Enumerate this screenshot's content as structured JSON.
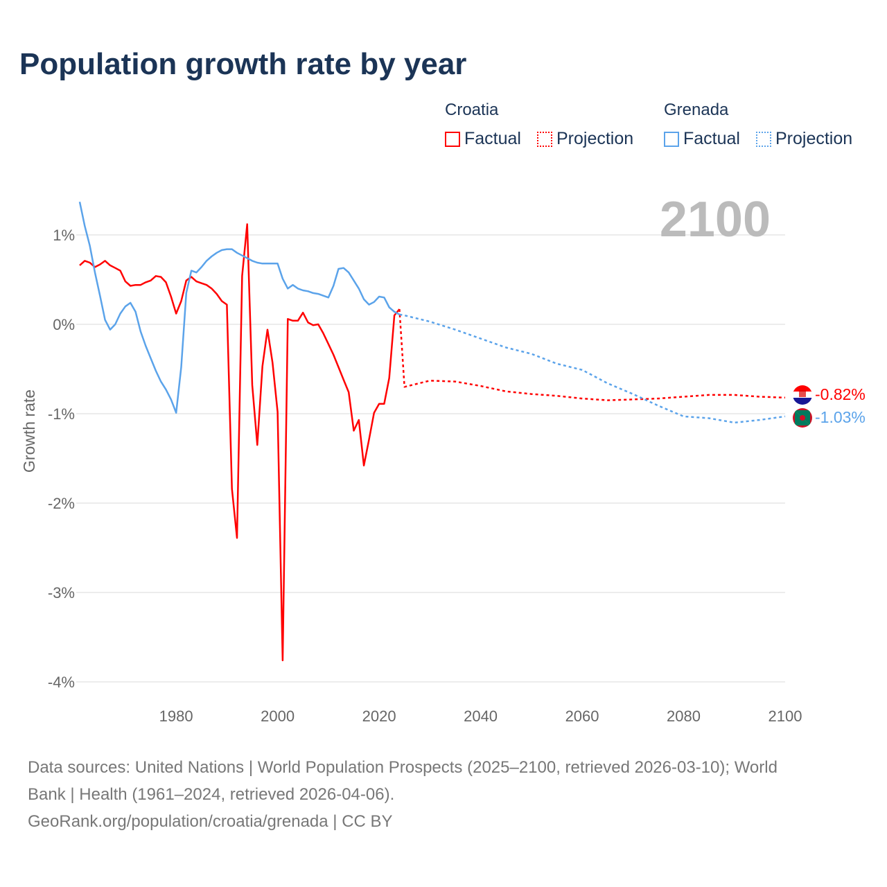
{
  "title": "Population growth rate by year",
  "legend": {
    "groups": [
      {
        "name": "Croatia",
        "color": "#ff0000",
        "factual": "Factual",
        "projection": "Projection"
      },
      {
        "name": "Grenada",
        "color": "#5ba3ea",
        "factual": "Factual",
        "projection": "Projection"
      }
    ]
  },
  "year_label": "2100",
  "end_labels": {
    "croatia": "-0.82%",
    "grenada": "-1.03%"
  },
  "footer": {
    "line1": "Data sources: United Nations | World Population Prospects (2025–2100, retrieved 2026-03-10); World",
    "line2": "Bank | Health (1961–2024, retrieved 2026-04-06).",
    "line3": "GeoRank.org/population/croatia/grenada | CC BY"
  },
  "chart_data": {
    "type": "line",
    "title": "Population growth rate by year",
    "xlabel": "",
    "ylabel": "Growth rate",
    "xlim": [
      1961,
      2100
    ],
    "ylim": [
      -4,
      1.3
    ],
    "xticks": [
      1980,
      2000,
      2020,
      2040,
      2060,
      2080,
      2100
    ],
    "xtick_labels": [
      "1980",
      "2000",
      "2020",
      "2040",
      "2060",
      "2080",
      "2100"
    ],
    "yticks": [
      1,
      0,
      -1,
      -2,
      -3,
      -4
    ],
    "ytick_labels": [
      "1%",
      "0%",
      "-1%",
      "-2%",
      "-3%",
      "-4%"
    ],
    "grid": true,
    "legend_position": "top-right",
    "series": [
      {
        "name": "Croatia Factual",
        "color": "#ff0000",
        "dash": false,
        "x_start": 1961,
        "values": [
          0.66,
          0.71,
          0.69,
          0.64,
          0.67,
          0.71,
          0.66,
          0.63,
          0.6,
          0.48,
          0.43,
          0.44,
          0.44,
          0.47,
          0.49,
          0.54,
          0.53,
          0.47,
          0.31,
          0.12,
          0.26,
          0.49,
          0.53,
          0.48,
          0.46,
          0.44,
          0.4,
          0.34,
          0.26,
          0.22,
          -1.84,
          -2.39,
          0.54,
          1.12,
          -0.68,
          -1.35,
          -0.47,
          -0.06,
          -0.43,
          -0.98,
          -3.76,
          0.06,
          0.04,
          0.04,
          0.13,
          0.02,
          -0.01,
          0.0,
          -0.1,
          -0.22,
          -0.34,
          -0.48,
          -0.62,
          -0.76,
          -1.19,
          -1.07,
          -1.58,
          -1.29,
          -0.99,
          -0.89,
          -0.89,
          -0.6,
          0.1,
          0.17
        ]
      },
      {
        "name": "Croatia Projection",
        "color": "#ff0000",
        "dash": true,
        "x": [
          2024,
          2025,
          2030,
          2035,
          2040,
          2045,
          2050,
          2055,
          2060,
          2065,
          2070,
          2075,
          2080,
          2085,
          2090,
          2095,
          2100
        ],
        "values": [
          0.17,
          -0.7,
          -0.63,
          -0.64,
          -0.69,
          -0.75,
          -0.78,
          -0.8,
          -0.83,
          -0.85,
          -0.84,
          -0.83,
          -0.81,
          -0.79,
          -0.79,
          -0.81,
          -0.82
        ]
      },
      {
        "name": "Grenada Factual",
        "color": "#5ba3ea",
        "dash": false,
        "x_start": 1961,
        "values": [
          1.37,
          1.1,
          0.88,
          0.58,
          0.32,
          0.05,
          -0.06,
          0.0,
          0.12,
          0.2,
          0.24,
          0.14,
          -0.08,
          -0.24,
          -0.38,
          -0.52,
          -0.64,
          -0.73,
          -0.84,
          -0.99,
          -0.48,
          0.35,
          0.6,
          0.58,
          0.64,
          0.71,
          0.76,
          0.8,
          0.83,
          0.84,
          0.84,
          0.8,
          0.77,
          0.74,
          0.71,
          0.69,
          0.68,
          0.68,
          0.68,
          0.68,
          0.51,
          0.4,
          0.44,
          0.4,
          0.38,
          0.37,
          0.35,
          0.34,
          0.32,
          0.3,
          0.43,
          0.62,
          0.63,
          0.58,
          0.49,
          0.4,
          0.28,
          0.22,
          0.25,
          0.31,
          0.3,
          0.19,
          0.14,
          0.11
        ]
      },
      {
        "name": "Grenada Projection",
        "color": "#5ba3ea",
        "dash": true,
        "x": [
          2024,
          2025,
          2030,
          2035,
          2040,
          2045,
          2050,
          2055,
          2060,
          2065,
          2070,
          2075,
          2080,
          2085,
          2090,
          2095,
          2100
        ],
        "values": [
          0.11,
          0.1,
          0.03,
          -0.06,
          -0.16,
          -0.26,
          -0.33,
          -0.44,
          -0.51,
          -0.66,
          -0.78,
          -0.91,
          -1.03,
          -1.05,
          -1.1,
          -1.07,
          -1.03
        ]
      }
    ]
  }
}
